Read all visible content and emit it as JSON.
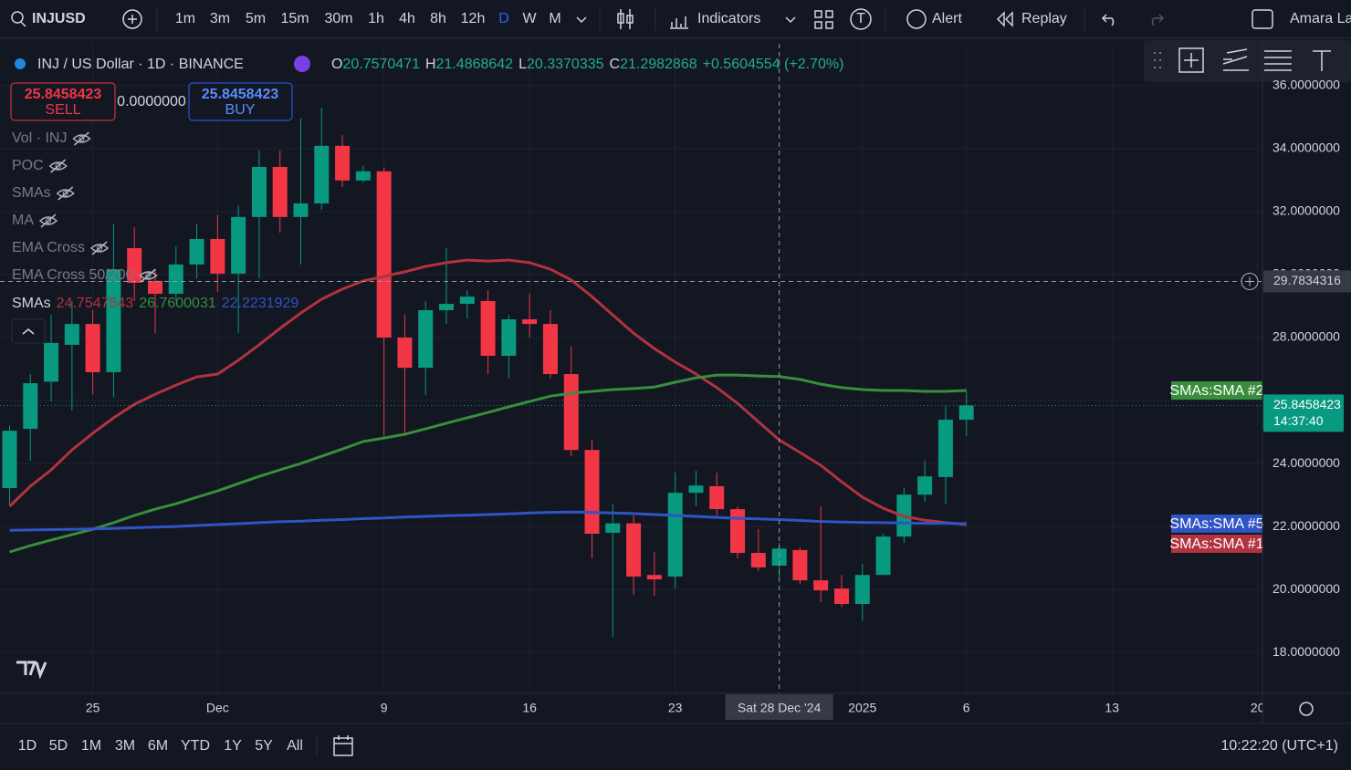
{
  "toolbar": {
    "symbol": "INJUSD",
    "intervals": [
      "1m",
      "3m",
      "5m",
      "15m",
      "30m",
      "1h",
      "4h",
      "8h",
      "12h",
      "D",
      "W",
      "M"
    ],
    "active_interval": "D",
    "indicators": "Indicators",
    "alert": "Alert",
    "replay": "Replay",
    "user": "Amara La"
  },
  "legend": {
    "title": "INJ / US Dollar · 1D · BINANCE",
    "ohlc": [
      {
        "key": "O",
        "value": "20.7570471"
      },
      {
        "key": "H",
        "value": "21.4868642"
      },
      {
        "key": "L",
        "value": "20.3370335"
      },
      {
        "key": "C",
        "value": "21.2982868"
      }
    ],
    "change": "+0.5604554 (+2.70%)"
  },
  "trade": {
    "sell_price": "25.8458423",
    "sell": "SELL",
    "spread": "0.0000000",
    "buy_price": "25.8458423",
    "buy": "BUY"
  },
  "indicator_list": [
    "Vol · INJ",
    "POC",
    "SMAs",
    "MA",
    "EMA Cross",
    "EMA Cross 50/200"
  ],
  "sma_legend": {
    "name": "SMAs",
    "values": [
      "24.7547543",
      "26.7600031",
      "22.2231929"
    ]
  },
  "chart_data": {
    "type": "candlestick",
    "up_color": "#089981",
    "down_color": "#f23645",
    "open": [
      23.22,
      25.1,
      26.6,
      27.77,
      28.43,
      26.9,
      30.84,
      29.8,
      29.39,
      30.32,
      31.13,
      30.03,
      31.83,
      33.42,
      31.83,
      32.26,
      34.09,
      32.99,
      33.28,
      28.0,
      27.04,
      28.87,
      29.07,
      29.16,
      27.42,
      28.58,
      28.43,
      26.84,
      24.43,
      21.8,
      22.1,
      20.46,
      20.41,
      23.07,
      23.28,
      22.55,
      21.16,
      20.7570471,
      21.25,
      20.29,
      20.03,
      19.54,
      20.46,
      21.68,
      23.01,
      23.57,
      25.39
    ],
    "high": [
      25.2,
      26.84,
      28.72,
      29.16,
      28.87,
      31.62,
      31.5,
      30.17,
      30.9,
      31.62,
      31.9,
      32.2,
      33.94,
      33.94,
      34.96,
      35.3,
      34.43,
      33.45,
      33.4,
      28.72,
      29.16,
      30.84,
      29.5,
      29.5,
      28.72,
      29.39,
      28.87,
      27.71,
      24.75,
      22.72,
      22.35,
      21.19,
      23.71,
      23.77,
      23.71,
      22.64,
      21.91,
      21.4868642,
      21.33,
      22.64,
      20.46,
      20.81,
      21.77,
      23.22,
      24.09,
      25.83,
      26.3
    ],
    "low": [
      22.7,
      24.09,
      25.97,
      25.68,
      26.2,
      26.1,
      29.16,
      28.14,
      29.16,
      29.88,
      29.45,
      28.14,
      29.88,
      31.33,
      30.32,
      32.06,
      32.78,
      32.93,
      24.87,
      24.87,
      26.17,
      28.43,
      28.6,
      26.84,
      26.7,
      28.0,
      26.7,
      24.23,
      20.99,
      18.49,
      19.83,
      19.8,
      20.03,
      22.64,
      22.35,
      20.99,
      20.58,
      20.3370335,
      20.17,
      19.6,
      19.45,
      19.01,
      20.46,
      21.48,
      22.78,
      22.72,
      24.87
    ],
    "close": [
      25.04,
      26.55,
      27.83,
      28.43,
      26.9,
      30.17,
      29.74,
      29.39,
      30.32,
      31.13,
      30.03,
      31.83,
      33.42,
      31.83,
      32.26,
      34.09,
      32.99,
      33.28,
      28.0,
      27.04,
      28.87,
      29.07,
      29.3,
      27.42,
      28.58,
      28.43,
      26.84,
      24.43,
      21.77,
      22.1,
      20.41,
      20.32,
      23.07,
      23.3,
      22.55,
      21.16,
      20.7,
      21.2982868,
      20.29,
      19.97,
      19.54,
      20.46,
      21.68,
      23.01,
      23.59,
      25.39,
      25.8458423
    ],
    "series": [
      {
        "name": "SMAs:SMA #1",
        "color": "#b2323f",
        "values": [
          22.64,
          23.28,
          23.8,
          24.43,
          24.96,
          25.45,
          25.88,
          26.2,
          26.49,
          26.75,
          26.84,
          27.28,
          27.77,
          28.29,
          28.78,
          29.22,
          29.54,
          29.8,
          29.94,
          30.09,
          30.26,
          30.38,
          30.46,
          30.43,
          30.46,
          30.38,
          30.17,
          29.83,
          29.3,
          28.72,
          28.14,
          27.65,
          27.22,
          26.84,
          26.41,
          25.91,
          25.33,
          24.75,
          24.35,
          23.94,
          23.42,
          22.93,
          22.58,
          22.32,
          22.2,
          22.12,
          22.06
        ]
      },
      {
        "name": "SMAs:SMA #2",
        "color": "#388e3c",
        "values": [
          21.19,
          21.39,
          21.57,
          21.74,
          21.91,
          22.12,
          22.35,
          22.55,
          22.72,
          22.93,
          23.13,
          23.36,
          23.59,
          23.8,
          24.0,
          24.23,
          24.46,
          24.7,
          24.81,
          24.93,
          25.1,
          25.28,
          25.45,
          25.62,
          25.8,
          25.97,
          26.14,
          26.23,
          26.29,
          26.35,
          26.38,
          26.43,
          26.58,
          26.72,
          26.81,
          26.81,
          26.78,
          26.76,
          26.67,
          26.52,
          26.41,
          26.35,
          26.32,
          26.32,
          26.29,
          26.29,
          26.32
        ]
      },
      {
        "name": "SMAs:SMA #5",
        "color": "#2f54c4",
        "values": [
          21.88,
          21.89,
          21.9,
          21.91,
          21.92,
          21.94,
          21.96,
          21.98,
          22.0,
          22.03,
          22.06,
          22.09,
          22.12,
          22.15,
          22.17,
          22.2,
          22.22,
          22.25,
          22.27,
          22.3,
          22.32,
          22.34,
          22.36,
          22.38,
          22.4,
          22.43,
          22.45,
          22.46,
          22.45,
          22.43,
          22.41,
          22.38,
          22.35,
          22.32,
          22.29,
          22.26,
          22.24,
          22.22,
          22.19,
          22.16,
          22.14,
          22.13,
          22.12,
          22.11,
          22.1,
          22.1,
          22.09
        ]
      }
    ],
    "xlim": [
      -0.46,
      60.1
    ],
    "xticks": [
      {
        "value": 4,
        "label": "25"
      },
      {
        "value": 10,
        "label": "Dec"
      },
      {
        "value": 18,
        "label": "9"
      },
      {
        "value": 25,
        "label": "16"
      },
      {
        "value": 32,
        "label": "23"
      },
      {
        "value": 41,
        "label": "2025"
      },
      {
        "value": 46,
        "label": "6"
      },
      {
        "value": 53,
        "label": "13"
      },
      {
        "value": 60,
        "label": "20"
      }
    ],
    "ylim": [
      16.7,
      37.33
    ],
    "yticks": [
      {
        "value": 18,
        "label": "18.0000000"
      },
      {
        "value": 20,
        "label": "20.0000000"
      },
      {
        "value": 22,
        "label": "22.0000000"
      },
      {
        "value": 24,
        "label": "24.0000000"
      },
      {
        "value": 26,
        "label": "26.0000000"
      },
      {
        "value": 28,
        "label": "28.0000000"
      },
      {
        "value": 30,
        "label": "30.0000000"
      },
      {
        "value": 32,
        "label": "32.0000000"
      },
      {
        "value": 34,
        "label": "34.0000000"
      },
      {
        "value": 36,
        "label": "36.0000000"
      }
    ],
    "grid": true,
    "last_price": 25.8458423,
    "countdown": "14:37:40",
    "crosshair": {
      "x": 37,
      "x_label": "Sat 28 Dec '24",
      "y": 29.7834316
    }
  },
  "bottom": {
    "ranges": [
      "1D",
      "5D",
      "1M",
      "3M",
      "6M",
      "YTD",
      "1Y",
      "5Y",
      "All"
    ],
    "clock": "10:22:20 (UTC+1)"
  }
}
